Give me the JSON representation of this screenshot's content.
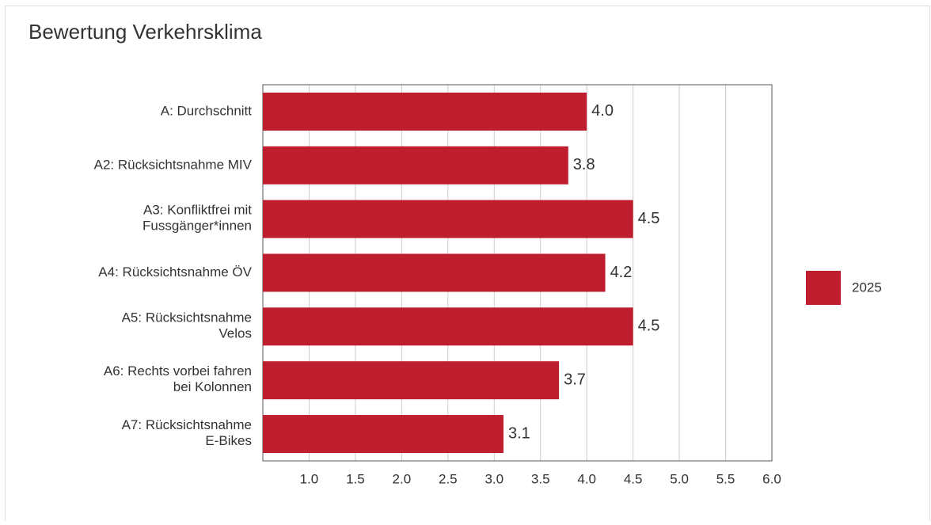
{
  "chart_data": {
    "type": "bar",
    "orientation": "horizontal",
    "title": "Bewertung Verkehrsklima",
    "categories": [
      "A: Durchschnitt",
      "A2: Rücksichtsnahme MIV",
      "A3: Konfliktfrei mit\nFussgänger*innen",
      "A4: Rücksichtsnahme ÖV",
      "A5: Rücksichtsnahme\nVelos",
      "A6: Rechts vorbei fahren\nbei Kolonnen",
      "A7: Rücksichtsnahme\nE-Bikes"
    ],
    "series": [
      {
        "name": "2025",
        "color": "#be1e2d",
        "values": [
          4,
          3.8,
          4.5,
          4.2,
          4.5,
          3.7,
          3.1
        ],
        "value_labels": [
          "4.0",
          "3.8",
          "4.5",
          "4.2",
          "4.5",
          "3.7",
          "3.1"
        ]
      }
    ],
    "xlim": [
      0.5,
      6
    ],
    "xticks": [
      {
        "value": 1,
        "label": "1.0"
      },
      {
        "value": 1.5,
        "label": "1.5"
      },
      {
        "value": 2,
        "label": "2.0"
      },
      {
        "value": 2.5,
        "label": "2.5"
      },
      {
        "value": 3,
        "label": "3.0"
      },
      {
        "value": 3.5,
        "label": "3.5"
      },
      {
        "value": 4,
        "label": "4.0"
      },
      {
        "value": 4.5,
        "label": "4.5"
      },
      {
        "value": 5,
        "label": "5.0"
      },
      {
        "value": 5.5,
        "label": "5.5"
      },
      {
        "value": 6,
        "label": "6.0"
      }
    ],
    "grid": true,
    "legend": "right"
  }
}
